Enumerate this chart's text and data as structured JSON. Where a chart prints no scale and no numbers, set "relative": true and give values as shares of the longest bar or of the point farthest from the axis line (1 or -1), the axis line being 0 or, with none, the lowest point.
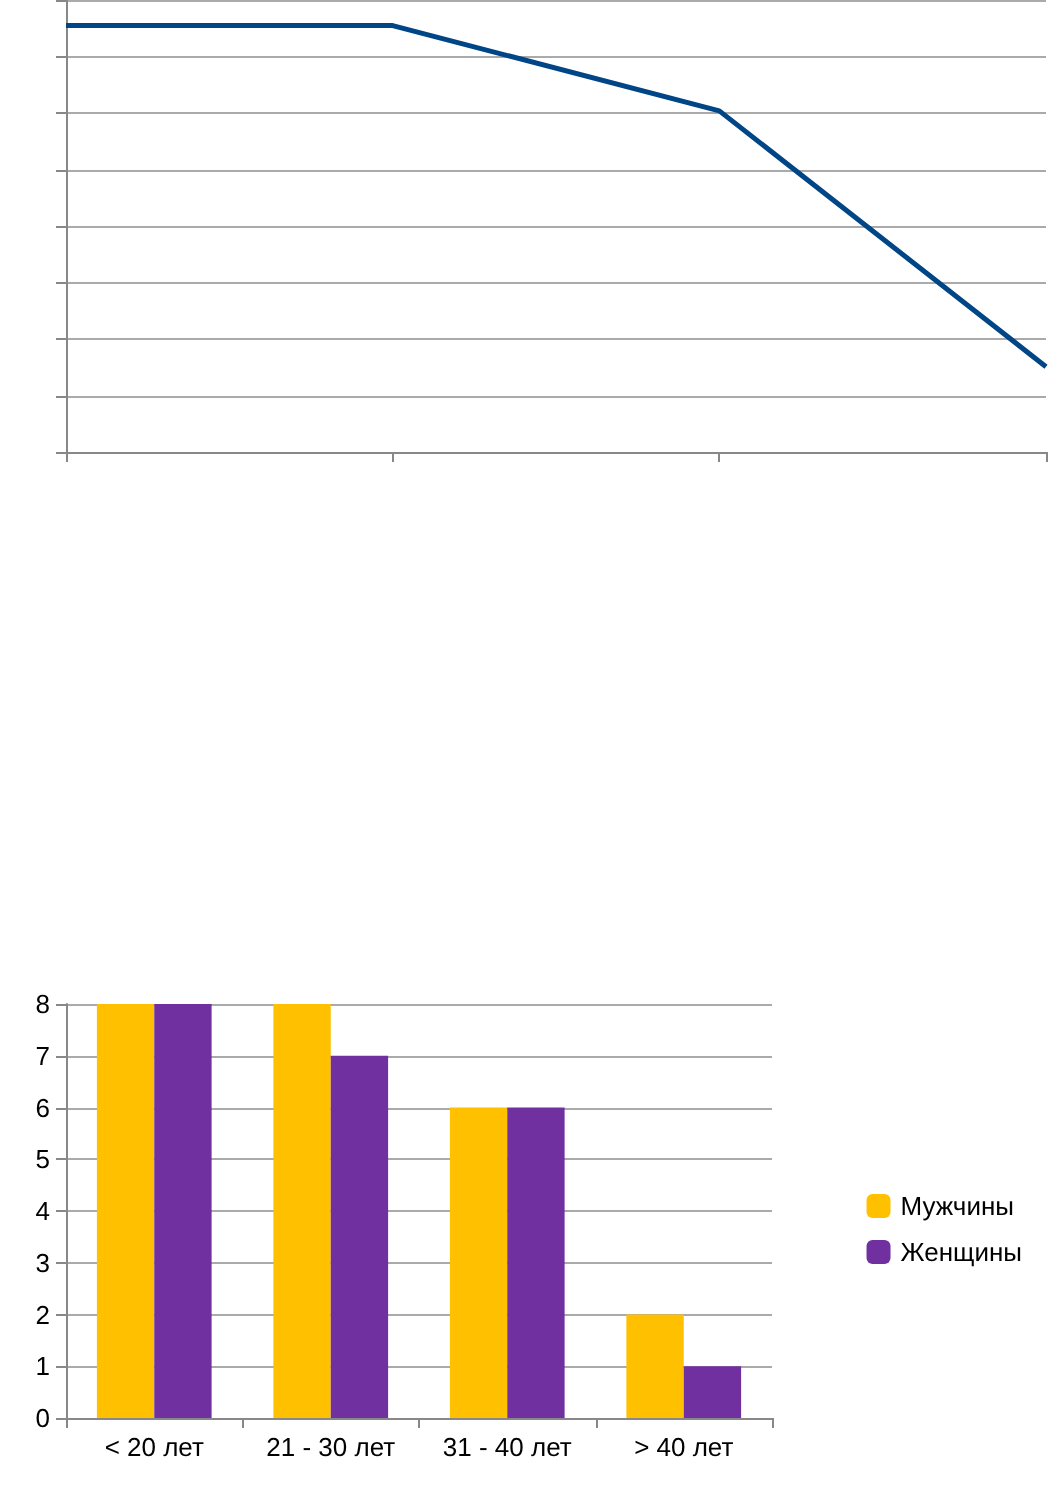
{
  "chart_data": [
    {
      "type": "line",
      "relative": true,
      "categories": [
        null,
        null,
        null,
        null
      ],
      "series": [
        {
          "color": "#004586",
          "values": [
            1,
            1,
            0.8,
            0.2
          ]
        }
      ],
      "grid": "y",
      "marker": "none"
    },
    {
      "type": "bar",
      "categories": [
        "< 20 лет",
        "21 - 30 лет",
        "31 - 40 лет",
        "> 40 лет"
      ],
      "series": [
        {
          "name": "Мужчины",
          "color": "#ffc000",
          "values": [
            8,
            8,
            6,
            2
          ]
        },
        {
          "name": "Женщины",
          "color": "#7030a0",
          "values": [
            8,
            7,
            6,
            1
          ]
        }
      ],
      "ylim": [
        0,
        8
      ],
      "yticks": [
        0,
        1,
        2,
        3,
        4,
        5,
        6,
        7,
        8
      ],
      "grid": "y",
      "legend": "right"
    }
  ]
}
